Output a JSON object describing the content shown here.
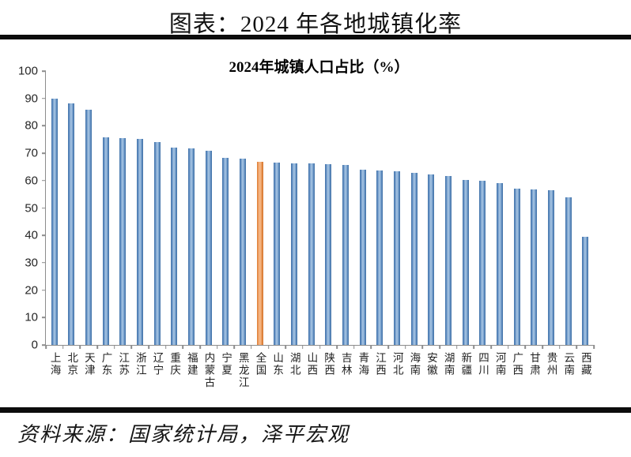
{
  "page_title": "图表：2024 年各地城镇化率",
  "footer": {
    "source_text": "资料来源：国家统计局，泽平宏观"
  },
  "chart_data": {
    "type": "bar",
    "title": "2024年城镇人口占比（%）",
    "categories": [
      "上海",
      "北京",
      "天津",
      "广东",
      "江苏",
      "浙江",
      "辽宁",
      "重庆",
      "福建",
      "内蒙古",
      "宁夏",
      "黑龙江",
      "全国",
      "山东",
      "湖北",
      "山西",
      "陕西",
      "吉林",
      "青海",
      "江西",
      "河北",
      "海南",
      "安徽",
      "湖南",
      "新疆",
      "四川",
      "河南",
      "广西",
      "甘肃",
      "贵州",
      "云南",
      "西藏"
    ],
    "values": [
      89.8,
      88.3,
      86.0,
      75.9,
      75.5,
      75.3,
      74.2,
      72.1,
      71.8,
      70.8,
      68.4,
      68.0,
      67.0,
      66.5,
      66.4,
      66.2,
      66.0,
      65.6,
      64.0,
      63.7,
      63.4,
      62.9,
      62.3,
      61.8,
      60.2,
      60.0,
      59.1,
      57.2,
      56.7,
      56.4,
      54.0,
      39.5
    ],
    "highlight_category": "全国",
    "highlight_index": 12,
    "ylabel": "",
    "xlabel": "",
    "ylim": [
      0,
      100
    ],
    "yticks": [
      0,
      10,
      20,
      30,
      40,
      50,
      60,
      70,
      80,
      90,
      100
    ],
    "grid": false,
    "legend_position": "none",
    "bar_color": "#4F81BD",
    "bar_highlight_color": "#E8833A",
    "axis_color": "#8C8C8C",
    "title_color": "#000000",
    "rule_color": "#0C0C0C"
  }
}
